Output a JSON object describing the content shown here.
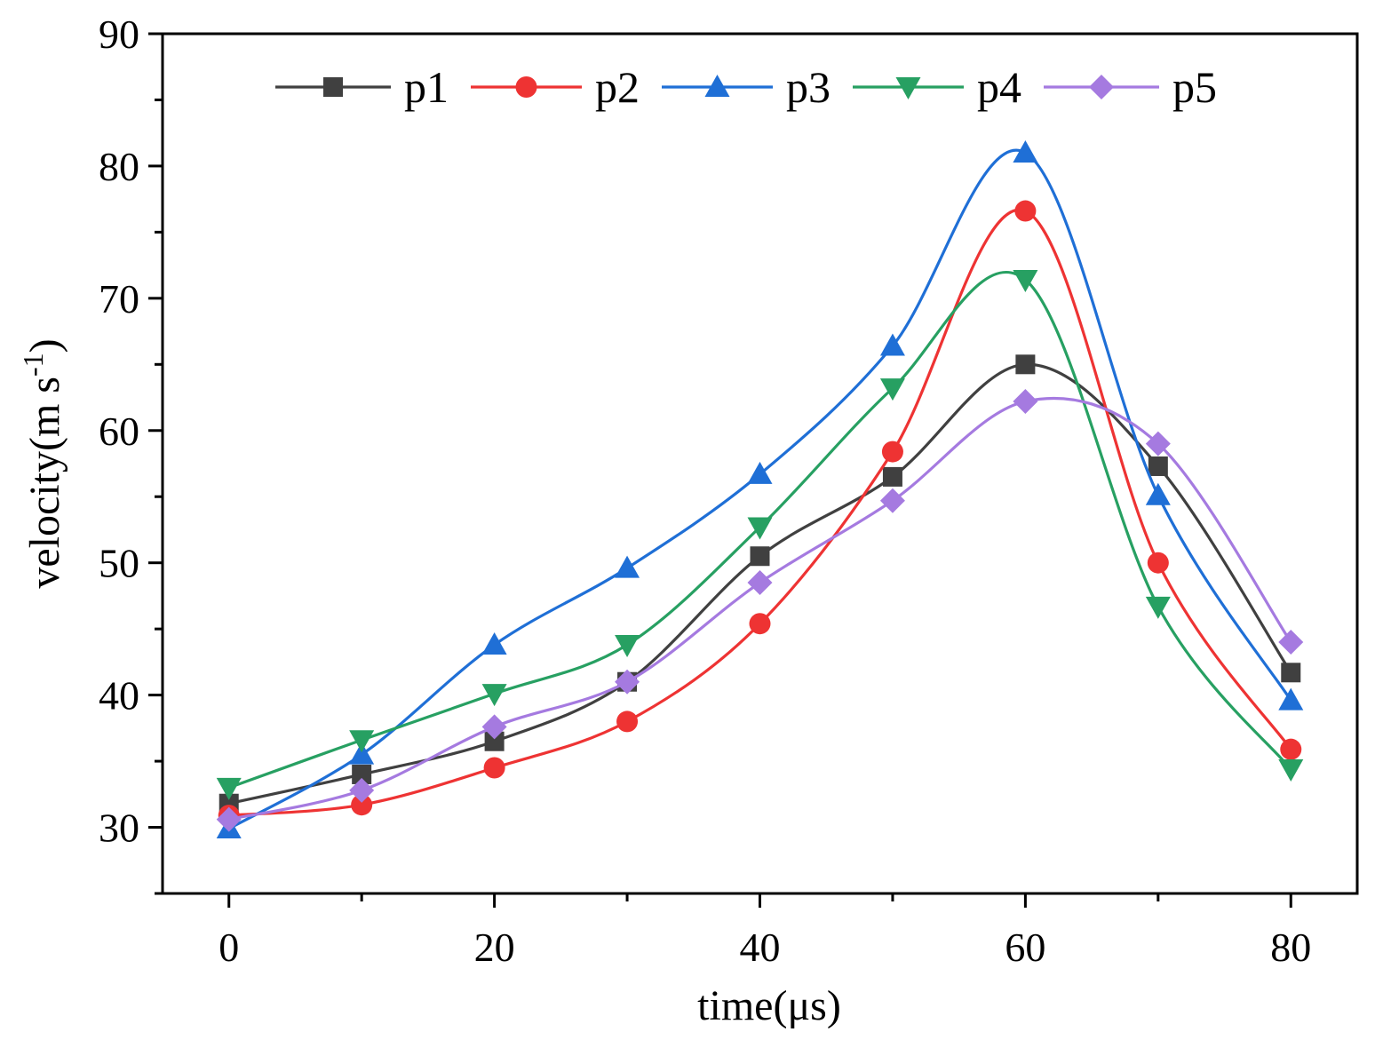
{
  "chart_data": {
    "type": "line",
    "title": "",
    "xlabel": "time(μs)",
    "ylabel": "velocity(m s",
    "ylabel_sup": "-1",
    "ylabel_close": ")",
    "xlim": [
      -5,
      85
    ],
    "ylim": [
      25,
      90
    ],
    "x_ticks": [
      0,
      20,
      40,
      60,
      80
    ],
    "x_tick_labels": [
      "0",
      "20",
      "40",
      "60",
      "80"
    ],
    "y_ticks": [
      30,
      40,
      50,
      60,
      70,
      80,
      90
    ],
    "y_tick_labels": [
      "30",
      "40",
      "50",
      "60",
      "70",
      "80",
      "90"
    ],
    "grid": false,
    "legend_position": "top",
    "x": [
      0,
      10,
      20,
      30,
      40,
      50,
      60,
      70,
      80
    ],
    "series": [
      {
        "name": "p1",
        "color": "#404040",
        "marker": "square",
        "values": [
          31.8,
          34.0,
          36.5,
          41.0,
          50.5,
          56.5,
          65.0,
          57.3,
          41.7
        ]
      },
      {
        "name": "p2",
        "color": "#ee3333",
        "marker": "circle",
        "values": [
          30.9,
          31.7,
          34.5,
          38.0,
          45.4,
          58.4,
          76.6,
          50.0,
          35.9
        ]
      },
      {
        "name": "p3",
        "color": "#1f6fd6",
        "marker": "triangle-up",
        "values": [
          29.9,
          35.5,
          43.8,
          49.6,
          56.7,
          66.4,
          81.0,
          55.1,
          39.6
        ]
      },
      {
        "name": "p4",
        "color": "#27a062",
        "marker": "triangle-down",
        "values": [
          33.0,
          36.6,
          40.1,
          43.8,
          52.7,
          63.2,
          71.4,
          46.7,
          34.4
        ]
      },
      {
        "name": "p5",
        "color": "#a57ae0",
        "marker": "diamond",
        "values": [
          30.6,
          32.8,
          37.6,
          41.0,
          48.5,
          54.7,
          62.2,
          59.0,
          44.0
        ]
      }
    ]
  }
}
